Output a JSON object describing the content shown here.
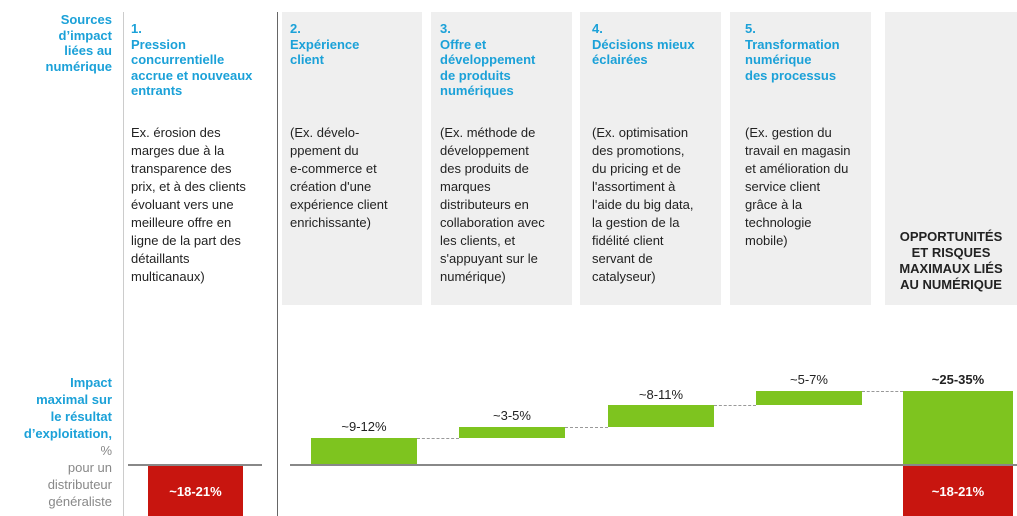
{
  "row_labels": {
    "sources": "Sources\nd’impact\nliées au\nnumérique",
    "impact": "Impact\nmaximal sur\nle résultat\nd’exploitation,",
    "impact_unit": "%",
    "impact_note": "pour un\ndistributeur\ngénéraliste"
  },
  "columns": [
    {
      "title": "1.\nPression\nconcurrentielle\naccrue et nouveaux\nentrants",
      "text": "Ex. érosion des\nmarges due à la\ntransparence des\nprix, et à des clients\névoluant vers une\nmeilleure offre en\nligne de la part des\ndétaillants\nmulticanaux)",
      "impact": "~18-21%"
    },
    {
      "title": "2.\nExpérience\nclient",
      "text": "(Ex. dévelo-\nppement du\ne-commerce et\ncréation d'une\nexpérience client\nenrichissante)",
      "impact": "~9-12%"
    },
    {
      "title": "3.\nOffre et\ndéveloppement\nde produits\nnumériques",
      "text": "(Ex. méthode de\ndéveloppement\ndes produits de\nmarques\ndistributeurs en\ncollaboration avec\nles clients, et\ns'appuyant sur le\nnumérique)",
      "impact": "~3-5%"
    },
    {
      "title": "4.\nDécisions mieux\néclairées",
      "text": "(Ex. optimisation\ndes promotions,\ndu pricing et de\nl'assortiment à\nl'aide du big data,\nla gestion de la\nfidélité client\nservant de\ncatalyseur)",
      "impact": "~8-11%"
    },
    {
      "title": "5.\nTransformation\nnumérique\ndes processus",
      "text": "(Ex. gestion du\ntravail en magasin\net amélioration du\nservice client\ngrâce à la\ntechnologie\nmobile)",
      "impact": "~5-7%"
    }
  ],
  "total": {
    "title": "OPPORTUNITÉS\nET RISQUES\nMAXIMAUX LIÉS\nAU NUMÉRIQUE",
    "opportunity": "~25-35%",
    "risk": "~18-21%"
  }
}
